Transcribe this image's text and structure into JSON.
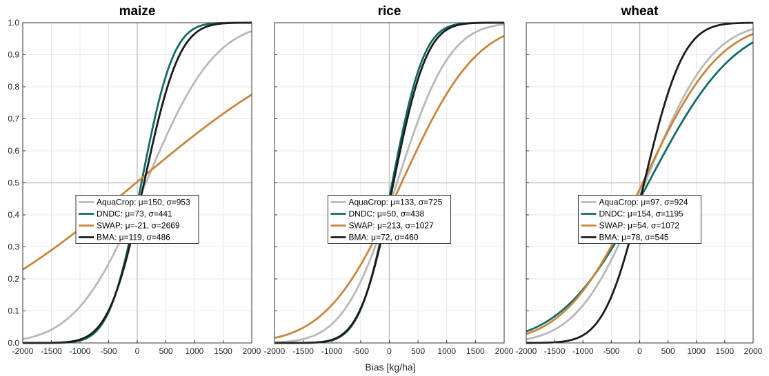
{
  "figure": {
    "xlabel": "Bias [kg/ha]"
  },
  "chart_data": [
    {
      "type": "line",
      "title": "maize",
      "xlim": [
        -2000,
        2000
      ],
      "ylim": [
        0,
        1
      ],
      "xticks": [
        -2000,
        -1500,
        -1000,
        -500,
        0,
        500,
        1000,
        1500,
        2000
      ],
      "yticks": [
        0,
        0.1,
        0.2,
        0.3,
        0.4,
        0.5,
        0.6,
        0.7,
        0.8,
        0.9,
        1
      ],
      "ytick_labels": [
        "0.0",
        "0.1",
        "0.2",
        "0.3",
        "0.4",
        "0.5",
        "0.6",
        "0.7",
        "0.8",
        "0.9",
        "1.0"
      ],
      "grid": true,
      "legend_placement": "center",
      "series": [
        {
          "name": "AquaCrop",
          "label_model": "AquaCrop:",
          "label_params": "μ=150, σ=953",
          "mu": 150,
          "sigma": 953,
          "color": "#b8b8b8"
        },
        {
          "name": "DNDC",
          "label_model": "DNDC:",
          "label_params": "μ=73, σ=441",
          "mu": 73,
          "sigma": 441,
          "color": "#0f6b66"
        },
        {
          "name": "SWAP",
          "label_model": "SWAP:",
          "label_params": "μ=-21, σ=2669",
          "mu": -21,
          "sigma": 2669,
          "color": "#c8853a"
        },
        {
          "name": "BMA",
          "label_model": "BMA:",
          "label_params": "μ=119, σ=486",
          "mu": 119,
          "sigma": 486,
          "color": "#1a1a1a"
        }
      ]
    },
    {
      "type": "line",
      "title": "rice",
      "xlim": [
        -2000,
        2000
      ],
      "ylim": [
        0,
        1
      ],
      "xticks": [
        -2000,
        -1500,
        -1000,
        -500,
        0,
        500,
        1000,
        1500,
        2000
      ],
      "yticks": [
        0,
        0.1,
        0.2,
        0.3,
        0.4,
        0.5,
        0.6,
        0.7,
        0.8,
        0.9,
        1
      ],
      "ytick_labels": [],
      "grid": true,
      "legend_placement": "center",
      "series": [
        {
          "name": "AquaCrop",
          "label_model": "AquaCrop:",
          "label_params": "μ=133, σ=725",
          "mu": 133,
          "sigma": 725,
          "color": "#b8b8b8"
        },
        {
          "name": "DNDC",
          "label_model": "DNDC:",
          "label_params": "μ=50, σ=438",
          "mu": 50,
          "sigma": 438,
          "color": "#0f6b66"
        },
        {
          "name": "SWAP",
          "label_model": "SWAP:",
          "label_params": "μ=213, σ=1027",
          "mu": 213,
          "sigma": 1027,
          "color": "#c8853a"
        },
        {
          "name": "BMA",
          "label_model": "BMA:",
          "label_params": "μ=72, σ=460",
          "mu": 72,
          "sigma": 460,
          "color": "#1a1a1a"
        }
      ]
    },
    {
      "type": "line",
      "title": "wheat",
      "xlim": [
        -2000,
        2000
      ],
      "ylim": [
        0,
        1
      ],
      "xticks": [
        -2000,
        -1500,
        -1000,
        -500,
        0,
        500,
        1000,
        1500,
        2000
      ],
      "yticks": [
        0,
        0.1,
        0.2,
        0.3,
        0.4,
        0.5,
        0.6,
        0.7,
        0.8,
        0.9,
        1
      ],
      "ytick_labels": [],
      "grid": true,
      "legend_placement": "center",
      "series": [
        {
          "name": "AquaCrop",
          "label_model": "AquaCrop:",
          "label_params": "μ=97, σ=924",
          "mu": 97,
          "sigma": 924,
          "color": "#b8b8b8"
        },
        {
          "name": "DNDC",
          "label_model": "DNDC:",
          "label_params": "μ=154, σ=1195",
          "mu": 154,
          "sigma": 1195,
          "color": "#0f6b66"
        },
        {
          "name": "SWAP",
          "label_model": "SWAP:",
          "label_params": "μ=54, σ=1072",
          "mu": 54,
          "sigma": 1072,
          "color": "#c8853a"
        },
        {
          "name": "BMA",
          "label_model": "BMA:",
          "label_params": "μ=78, σ=545",
          "mu": 78,
          "sigma": 545,
          "color": "#1a1a1a"
        }
      ]
    }
  ]
}
